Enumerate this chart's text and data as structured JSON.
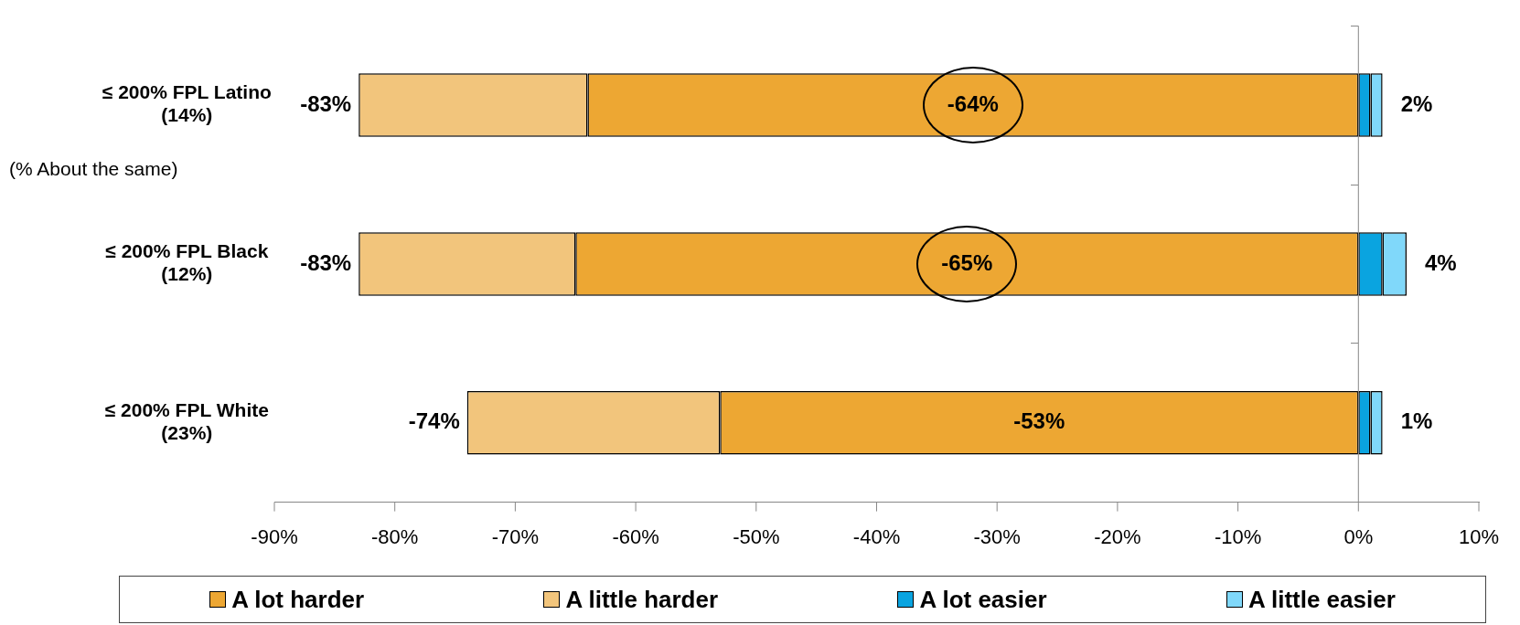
{
  "chart_data": {
    "type": "bar",
    "orientation": "horizontal",
    "stacked": true,
    "categories": [
      "≤ 200% FPL Latino\n(14%)",
      "≤ 200% FPL Black\n(12%)",
      "≤ 200% FPL White\n(23%)"
    ],
    "series": [
      {
        "name": "A lot harder",
        "color": "#eda733",
        "values": [
          -64,
          -65,
          -53
        ],
        "value_labels": [
          "-64%",
          "-65%",
          "-53%"
        ]
      },
      {
        "name": "A little harder",
        "color": "#f2c57c",
        "values": [
          -19,
          -18,
          -21
        ]
      },
      {
        "name": "A lot easier",
        "color": "#0aa4e0",
        "values": [
          1,
          2,
          1
        ]
      },
      {
        "name": "A little easier",
        "color": "#80d8fa",
        "values": [
          1,
          2,
          1
        ]
      }
    ],
    "totals": [
      [
        "-83%",
        "2%"
      ],
      [
        "-83%",
        "4%"
      ],
      [
        "-74%",
        "1%"
      ]
    ],
    "xlim": [
      -90,
      10
    ],
    "xticks": [
      {
        "value": -90,
        "label": "-90%"
      },
      {
        "value": -80,
        "label": "-80%"
      },
      {
        "value": -70,
        "label": "-70%"
      },
      {
        "value": -60,
        "label": "-60%"
      },
      {
        "value": -50,
        "label": "-50%"
      },
      {
        "value": -40,
        "label": "-40%"
      },
      {
        "value": -30,
        "label": "-30%"
      },
      {
        "value": -20,
        "label": "-20%"
      },
      {
        "value": -10,
        "label": "-10%"
      },
      {
        "value": 0,
        "label": "0%"
      },
      {
        "value": 10,
        "label": "10%"
      }
    ],
    "annotations": [
      "(% About the same)"
    ],
    "ref_lines": [
      {
        "axis": "x",
        "value": 0,
        "color": "#888888"
      }
    ],
    "grid": false,
    "legend": "bottom"
  }
}
